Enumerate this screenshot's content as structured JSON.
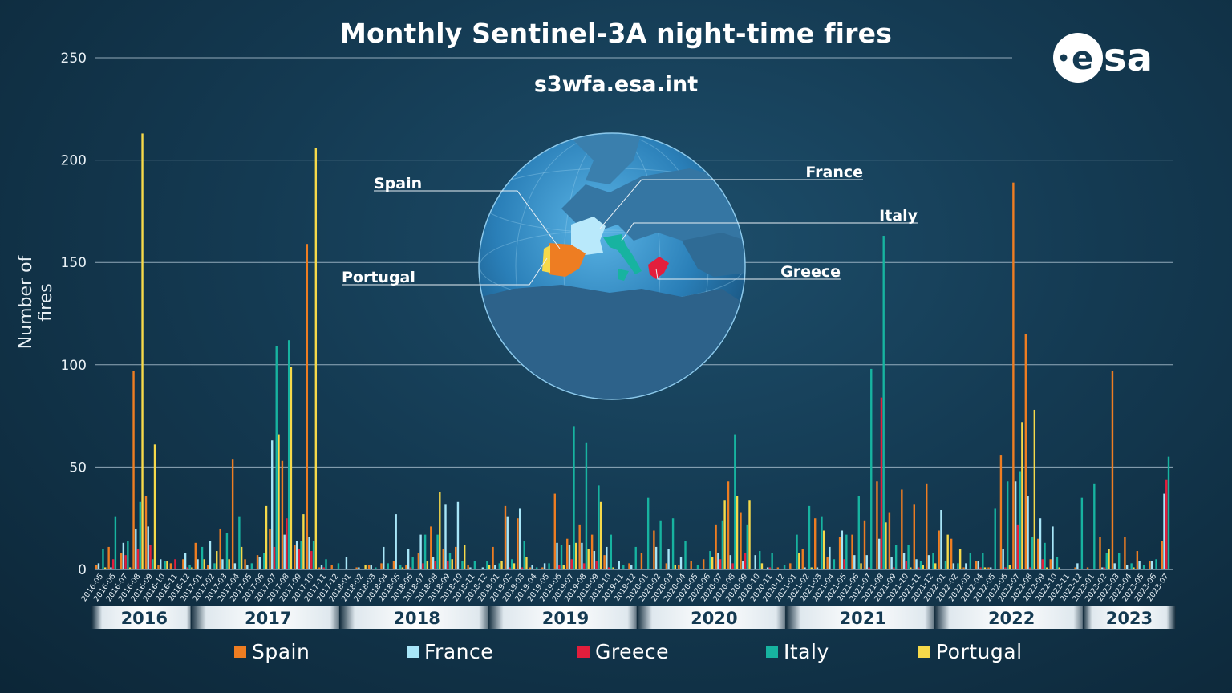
{
  "chart_data": {
    "type": "bar",
    "title": "Monthly Sentinel-3A night-time fires",
    "subtitle": "s3wfa.esa.int",
    "ylabel": "Number of fires",
    "xlabel": "",
    "ylim": [
      0,
      250
    ],
    "yticks": [
      0,
      50,
      100,
      150,
      200,
      250
    ],
    "grid": true,
    "legend_position": "bottom",
    "categories": [
      "2016-05",
      "2016-06",
      "2016-07",
      "2016-08",
      "2016-09",
      "2016-10",
      "2016-11",
      "2016-12",
      "2017-01",
      "2017-02",
      "2017-03",
      "2017-04",
      "2017-05",
      "2017-06",
      "2017-07",
      "2017-08",
      "2017-09",
      "2017-10",
      "2017-11",
      "2017-12",
      "2018-01",
      "2018-02",
      "2018-03",
      "2018-04",
      "2018-05",
      "2018-06",
      "2018-07",
      "2018-08",
      "2018-09",
      "2018-10",
      "2018-11",
      "2018-12",
      "2019-01",
      "2019-02",
      "2019-03",
      "2019-04",
      "2019-05",
      "2019-06",
      "2019-07",
      "2019-08",
      "2019-09",
      "2019-10",
      "2019-11",
      "2019-12",
      "2020-01",
      "2020-02",
      "2020-03",
      "2020-04",
      "2020-05",
      "2020-06",
      "2020-07",
      "2020-08",
      "2020-09",
      "2020-10",
      "2020-11",
      "2020-12",
      "2021-01",
      "2021-02",
      "2021-03",
      "2021-04",
      "2021-05",
      "2021-06",
      "2021-07",
      "2021-08",
      "2021-09",
      "2021-10",
      "2021-11",
      "2021-12",
      "2022-01",
      "2022-02",
      "2022-03",
      "2022-04",
      "2022-05",
      "2022-06",
      "2022-07",
      "2022-08",
      "2022-09",
      "2022-10",
      "2022-11",
      "2022-12",
      "2023-01",
      "2023-02",
      "2023-03",
      "2023-04",
      "2023-05",
      "2023-06",
      "2023-07"
    ],
    "years": [
      {
        "label": "2016",
        "first": 0,
        "last": 7
      },
      {
        "label": "2017",
        "first": 8,
        "last": 19
      },
      {
        "label": "2018",
        "first": 20,
        "last": 31
      },
      {
        "label": "2019",
        "first": 32,
        "last": 43
      },
      {
        "label": "2020",
        "first": 44,
        "last": 55
      },
      {
        "label": "2021",
        "first": 56,
        "last": 67
      },
      {
        "label": "2022",
        "first": 68,
        "last": 79
      },
      {
        "label": "2023",
        "first": 80,
        "last": 86
      }
    ],
    "series": [
      {
        "name": "Spain",
        "color": "#ee7d22",
        "values": [
          2,
          11,
          8,
          97,
          36,
          2,
          3,
          5,
          13,
          2,
          20,
          54,
          5,
          7,
          20,
          53,
          12,
          159,
          1,
          2,
          0,
          1,
          2,
          3,
          4,
          2,
          8,
          21,
          10,
          11,
          2,
          0,
          11,
          31,
          25,
          1,
          1,
          37,
          15,
          22,
          17,
          7,
          0,
          3,
          8,
          19,
          3,
          2,
          4,
          5,
          22,
          43,
          28,
          0,
          0,
          1,
          3,
          10,
          25,
          6,
          16,
          17,
          24,
          43,
          28,
          39,
          32,
          42,
          19,
          15,
          1,
          4,
          1,
          56,
          189,
          115,
          15,
          5,
          0,
          1,
          1,
          16,
          97,
          16,
          9,
          4,
          14
        ]
      },
      {
        "name": "France",
        "color": "#a8e6f8",
        "values": [
          3,
          1,
          13,
          20,
          21,
          5,
          0,
          8,
          5,
          14,
          5,
          3,
          2,
          6,
          63,
          17,
          14,
          16,
          2,
          0,
          6,
          1,
          2,
          11,
          27,
          10,
          17,
          6,
          32,
          33,
          1,
          1,
          2,
          26,
          30,
          2,
          3,
          13,
          12,
          13,
          9,
          11,
          4,
          2,
          0,
          11,
          10,
          6,
          0,
          0,
          8,
          7,
          4,
          7,
          1,
          0,
          0,
          1,
          1,
          11,
          19,
          7,
          7,
          15,
          6,
          8,
          5,
          7,
          29,
          3,
          3,
          4,
          1,
          10,
          43,
          36,
          25,
          21,
          0,
          3,
          0,
          1,
          3,
          2,
          4,
          4,
          37
        ]
      },
      {
        "name": "Greece",
        "color": "#e31e3c",
        "values": [
          0,
          5,
          7,
          10,
          12,
          0,
          5,
          1,
          0,
          0,
          0,
          0,
          0,
          0,
          11,
          25,
          10,
          9,
          1,
          0,
          0,
          0,
          0,
          0,
          0,
          1,
          3,
          4,
          4,
          0,
          0,
          0,
          0,
          1,
          1,
          0,
          0,
          2,
          5,
          3,
          4,
          1,
          0,
          0,
          0,
          0,
          0,
          0,
          0,
          0,
          5,
          3,
          8,
          0,
          1,
          0,
          0,
          0,
          0,
          0,
          5,
          0,
          1,
          84,
          1,
          4,
          1,
          0,
          0,
          0,
          0,
          1,
          0,
          1,
          22,
          1,
          5,
          0,
          0,
          0,
          0,
          1,
          0,
          0,
          0,
          0,
          44
        ]
      },
      {
        "name": "Italy",
        "color": "#17b3a0",
        "values": [
          10,
          26,
          14,
          33,
          5,
          4,
          0,
          2,
          11,
          3,
          18,
          26,
          3,
          8,
          109,
          112,
          14,
          14,
          5,
          3,
          0,
          0,
          1,
          3,
          2,
          6,
          17,
          17,
          8,
          4,
          4,
          4,
          3,
          5,
          14,
          1,
          3,
          12,
          70,
          62,
          41,
          17,
          2,
          11,
          35,
          24,
          25,
          14,
          2,
          9,
          24,
          66,
          22,
          9,
          8,
          2,
          17,
          31,
          26,
          5,
          17,
          36,
          98,
          163,
          12,
          12,
          4,
          8,
          4,
          3,
          8,
          8,
          30,
          43,
          48,
          16,
          13,
          6,
          0,
          35,
          42,
          8,
          8,
          3,
          2,
          5,
          55
        ]
      },
      {
        "name": "Portugal",
        "color": "#f6d94a",
        "values": [
          1,
          0,
          1,
          213,
          61,
          4,
          0,
          1,
          5,
          9,
          5,
          11,
          0,
          31,
          66,
          99,
          27,
          206,
          0,
          0,
          0,
          2,
          0,
          0,
          1,
          0,
          4,
          38,
          5,
          12,
          0,
          2,
          4,
          3,
          6,
          0,
          0,
          2,
          13,
          10,
          33,
          1,
          0,
          0,
          0,
          0,
          2,
          0,
          0,
          6,
          34,
          36,
          34,
          3,
          0,
          0,
          8,
          1,
          19,
          0,
          0,
          3,
          0,
          23,
          0,
          1,
          2,
          3,
          17,
          10,
          0,
          1,
          0,
          2,
          72,
          78,
          1,
          1,
          0,
          0,
          0,
          10,
          0,
          1,
          0,
          0,
          0
        ]
      }
    ]
  },
  "map": {
    "labels": {
      "spain": "Spain",
      "france": "France",
      "italy": "Italy",
      "portugal": "Portugal",
      "greece": "Greece"
    }
  },
  "logo": {
    "text": "esa"
  }
}
